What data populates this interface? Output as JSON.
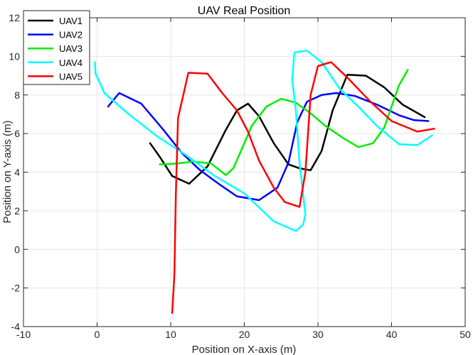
{
  "chart_data": {
    "type": "line",
    "title": "UAV Real Position",
    "xlabel": "Position on X-axis (m)",
    "ylabel": "Position on Y-axis (m)",
    "xlim": [
      -10,
      50
    ],
    "ylim": [
      -4,
      12
    ],
    "xticks": [
      -10,
      0,
      10,
      20,
      30,
      40,
      50
    ],
    "yticks": [
      -4,
      -2,
      0,
      2,
      4,
      6,
      8,
      10,
      12
    ],
    "grid": true,
    "legend_position": "top-left",
    "series": [
      {
        "name": "UAV1",
        "color": "#000000",
        "points": [
          [
            7.2,
            5.5
          ],
          [
            8.5,
            4.8
          ],
          [
            10.2,
            3.8
          ],
          [
            12.5,
            3.4
          ],
          [
            15,
            4.3
          ],
          [
            17.5,
            6.2
          ],
          [
            19,
            7.2
          ],
          [
            20.5,
            7.55
          ],
          [
            22,
            6.9
          ],
          [
            24,
            5.5
          ],
          [
            26,
            4.4
          ],
          [
            27.5,
            4.2
          ],
          [
            29,
            4.1
          ],
          [
            30.5,
            5.1
          ],
          [
            32,
            7.2
          ],
          [
            34,
            9.05
          ],
          [
            36.5,
            9.0
          ],
          [
            39,
            8.4
          ],
          [
            41.5,
            7.5
          ],
          [
            44.5,
            6.85
          ]
        ]
      },
      {
        "name": "UAV2",
        "color": "#0000ff",
        "points": [
          [
            1.5,
            7.4
          ],
          [
            3,
            8.1
          ],
          [
            6,
            7.55
          ],
          [
            9,
            6.2
          ],
          [
            11.5,
            5.0
          ],
          [
            14,
            4.1
          ],
          [
            16.5,
            3.4
          ],
          [
            19,
            2.75
          ],
          [
            22,
            2.55
          ],
          [
            24.5,
            3.2
          ],
          [
            26,
            4.5
          ],
          [
            27.2,
            6.6
          ],
          [
            28.5,
            7.65
          ],
          [
            30.5,
            8.0
          ],
          [
            32.5,
            8.1
          ],
          [
            35,
            7.95
          ],
          [
            38,
            7.5
          ],
          [
            41,
            6.95
          ],
          [
            43,
            6.7
          ],
          [
            45,
            6.65
          ]
        ]
      },
      {
        "name": "UAV3",
        "color": "#00ee00",
        "points": [
          [
            8.5,
            4.4
          ],
          [
            11,
            4.45
          ],
          [
            13,
            4.55
          ],
          [
            15.5,
            4.45
          ],
          [
            17.5,
            3.85
          ],
          [
            18.5,
            4.2
          ],
          [
            20,
            5.5
          ],
          [
            21,
            6.4
          ],
          [
            23,
            7.4
          ],
          [
            25,
            7.8
          ],
          [
            27,
            7.6
          ],
          [
            29,
            7.05
          ],
          [
            31,
            6.4
          ],
          [
            33.5,
            5.75
          ],
          [
            35.5,
            5.3
          ],
          [
            37.5,
            5.5
          ],
          [
            39,
            6.3
          ],
          [
            41,
            8.5
          ],
          [
            42.2,
            9.3
          ]
        ]
      },
      {
        "name": "UAV4",
        "color": "#00ffff",
        "points": [
          [
            -0.3,
            9.7
          ],
          [
            -0.2,
            9.1
          ],
          [
            1,
            8.1
          ],
          [
            4,
            7.1
          ],
          [
            8,
            5.9
          ],
          [
            12,
            4.9
          ],
          [
            16,
            3.8
          ],
          [
            20,
            2.9
          ],
          [
            24,
            1.45
          ],
          [
            27,
            0.95
          ],
          [
            28,
            1.3
          ],
          [
            28.3,
            1.8
          ],
          [
            27.5,
            4.5
          ],
          [
            27.0,
            7.2
          ],
          [
            26.5,
            8.8
          ],
          [
            26.8,
            10.2
          ],
          [
            28.5,
            10.3
          ],
          [
            30.5,
            9.7
          ],
          [
            33,
            8.3
          ],
          [
            35.5,
            7.4
          ],
          [
            38,
            6.4
          ],
          [
            41,
            5.45
          ],
          [
            43.5,
            5.4
          ],
          [
            45.5,
            5.9
          ]
        ]
      },
      {
        "name": "UAV5",
        "color": "#ff0000",
        "points": [
          [
            10.2,
            -3.3
          ],
          [
            10.5,
            -1.3
          ],
          [
            10.7,
            2.8
          ],
          [
            11,
            6.8
          ],
          [
            12.4,
            9.15
          ],
          [
            15,
            9.1
          ],
          [
            17,
            8.1
          ],
          [
            19,
            7.2
          ],
          [
            20.5,
            6.1
          ],
          [
            22,
            4.6
          ],
          [
            24,
            3.2
          ],
          [
            25.5,
            2.45
          ],
          [
            27.5,
            2.2
          ],
          [
            28.3,
            4.0
          ],
          [
            29,
            8.0
          ],
          [
            30,
            9.5
          ],
          [
            31.8,
            9.7
          ],
          [
            34,
            8.9
          ],
          [
            37,
            7.7
          ],
          [
            40,
            6.65
          ],
          [
            43.5,
            6.1
          ],
          [
            45.8,
            6.25
          ]
        ]
      }
    ]
  }
}
